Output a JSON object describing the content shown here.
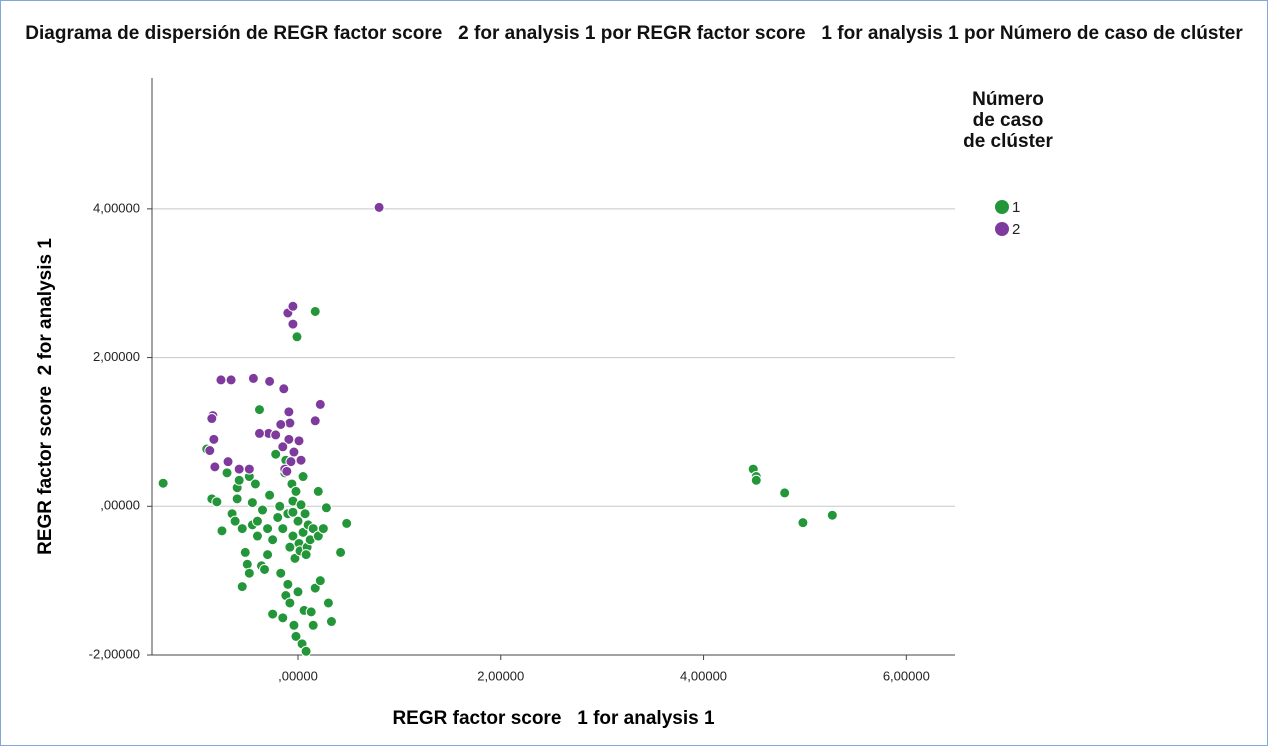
{
  "chart_data": {
    "type": "scatter",
    "title": "Diagrama de dispersión de REGR factor score   2 for analysis 1 por REGR factor score   1 for analysis 1 por Número de caso de clúster",
    "x_label": "REGR factor score   1 for analysis 1",
    "y_label": "REGR factor score  2 for analysis 1",
    "legend_title": "Número de caso de clúster",
    "legend_position": "right",
    "grid": true,
    "xlim": [
      -1.44,
      6.48
    ],
    "ylim": [
      -2,
      5.76
    ],
    "xticks": [
      {
        "value": 0,
        "label": ",00000"
      },
      {
        "value": 2,
        "label": "2,00000"
      },
      {
        "value": 4,
        "label": "4,00000"
      },
      {
        "value": 6,
        "label": "6,00000"
      }
    ],
    "yticks": [
      {
        "value": -2,
        "label": "-2,00000"
      },
      {
        "value": 0,
        "label": ",00000"
      },
      {
        "value": 2,
        "label": "2,00000"
      },
      {
        "value": 4,
        "label": "4,00000"
      }
    ],
    "series": [
      {
        "name": "1",
        "color": "#23963a",
        "x": [
          -1.33,
          -0.9,
          -0.85,
          -0.8,
          -0.75,
          -0.7,
          -0.65,
          -0.62,
          -0.6,
          -0.58,
          -0.55,
          -0.55,
          -0.52,
          -0.5,
          -0.48,
          -0.48,
          -0.45,
          -0.45,
          -0.42,
          -0.4,
          -0.4,
          -0.38,
          -0.36,
          -0.35,
          -0.33,
          -0.3,
          -0.28,
          -0.25,
          -0.25,
          -0.22,
          -0.2,
          -0.18,
          -0.17,
          -0.15,
          -0.15,
          -0.13,
          -0.12,
          -0.12,
          -0.1,
          -0.1,
          -0.08,
          -0.08,
          -0.06,
          -0.05,
          -0.05,
          -0.04,
          -0.03,
          -0.02,
          -0.02,
          0,
          0,
          0.01,
          0.02,
          0.03,
          0.04,
          0.05,
          0.05,
          0.06,
          0.07,
          0.08,
          0.09,
          0.1,
          0.12,
          0.13,
          0.15,
          0.15,
          0.17,
          0.2,
          0.2,
          0.22,
          0.25,
          0.28,
          0.3,
          0.33,
          0.42,
          0.48,
          0.17,
          -0.01,
          4.49,
          4.52,
          4.52,
          4.8,
          4.98,
          5.27,
          -0.05,
          0.08,
          -0.3,
          -0.6
        ],
        "values": [
          0.31,
          0.77,
          0.1,
          0.06,
          -0.33,
          0.45,
          -0.1,
          -0.2,
          0.25,
          0.35,
          -0.3,
          -1.08,
          -0.62,
          -0.78,
          0.4,
          -0.9,
          0.05,
          -0.25,
          0.3,
          -0.2,
          -0.4,
          1.3,
          -0.8,
          -0.05,
          -0.85,
          -0.3,
          0.15,
          -0.45,
          -1.45,
          0.7,
          -0.15,
          0,
          -0.9,
          -0.3,
          -1.5,
          0.45,
          0.62,
          -1.2,
          -0.1,
          -1.05,
          -0.55,
          -1.3,
          0.3,
          0.07,
          -0.4,
          -1.6,
          -0.7,
          0.2,
          -1.75,
          -0.2,
          -1.15,
          -0.5,
          -0.6,
          0.02,
          -1.85,
          -0.35,
          0.4,
          -1.4,
          -0.1,
          -1.95,
          -0.55,
          -0.25,
          -0.45,
          -1.42,
          -0.3,
          -1.6,
          -1.1,
          0.2,
          -0.4,
          -1,
          -0.3,
          -0.02,
          -1.3,
          -1.55,
          -0.62,
          -0.23,
          2.62,
          2.28,
          0.5,
          0.4,
          0.35,
          0.18,
          -0.22,
          -0.12,
          -0.08,
          -0.65,
          -0.65,
          0.1
        ]
      },
      {
        "name": "2",
        "color": "#7e3a9c",
        "x": [
          0.8,
          -0.1,
          -0.05,
          -0.05,
          -0.76,
          -0.66,
          -0.44,
          -0.28,
          -0.14,
          0.22,
          0.17,
          -0.09,
          -0.08,
          -0.29,
          -0.38,
          -0.84,
          -0.85,
          -0.87,
          -0.83,
          -0.69,
          -0.82,
          -0.09,
          0.01,
          -0.04,
          -0.07,
          -0.13,
          -0.48,
          -0.58,
          -0.17,
          -0.22,
          -0.15,
          -0.11,
          0.03
        ],
        "values": [
          4.02,
          2.6,
          2.69,
          2.45,
          1.7,
          1.7,
          1.72,
          1.68,
          1.58,
          1.37,
          1.15,
          1.27,
          1.12,
          0.98,
          0.98,
          1.22,
          1.18,
          0.75,
          0.9,
          0.6,
          0.53,
          0.9,
          0.88,
          0.73,
          0.6,
          0.5,
          0.5,
          0.5,
          1.1,
          0.96,
          0.8,
          0.47,
          0.62
        ]
      }
    ]
  }
}
